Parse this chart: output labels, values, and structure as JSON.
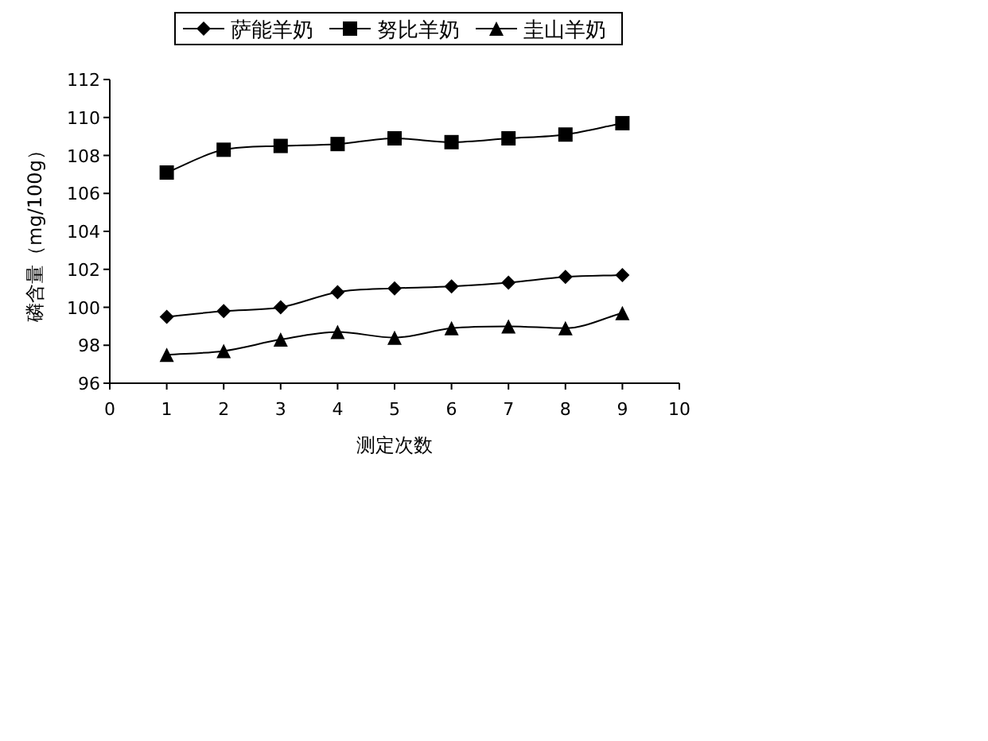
{
  "chart_data": {
    "type": "line",
    "xlabel": "测定次数",
    "ylabel": "磷含量（mg/100g）",
    "x": [
      1,
      2,
      3,
      4,
      5,
      6,
      7,
      8,
      9
    ],
    "series": [
      {
        "name": "萨能羊奶",
        "color": "#000000",
        "marker": "diamond",
        "values": [
          99.5,
          99.8,
          100.0,
          100.8,
          101.0,
          101.1,
          101.3,
          101.6,
          101.7
        ]
      },
      {
        "name": "努比羊奶",
        "color": "#000000",
        "marker": "square",
        "values": [
          107.1,
          108.3,
          108.5,
          108.6,
          108.9,
          108.7,
          108.9,
          109.1,
          109.7
        ]
      },
      {
        "name": "圭山羊奶",
        "color": "#000000",
        "marker": "triangle",
        "values": [
          97.5,
          97.7,
          98.3,
          98.7,
          98.4,
          98.9,
          99.0,
          98.9,
          99.7
        ]
      }
    ],
    "xlim": [
      0,
      10
    ],
    "xticks": [
      0,
      1,
      2,
      3,
      4,
      5,
      6,
      7,
      8,
      9,
      10
    ],
    "ylim": [
      96,
      112
    ],
    "yticks": [
      96,
      98,
      100,
      102,
      104,
      106,
      108,
      110,
      112
    ],
    "grid": false,
    "legend": "top",
    "line_style": "solid"
  }
}
